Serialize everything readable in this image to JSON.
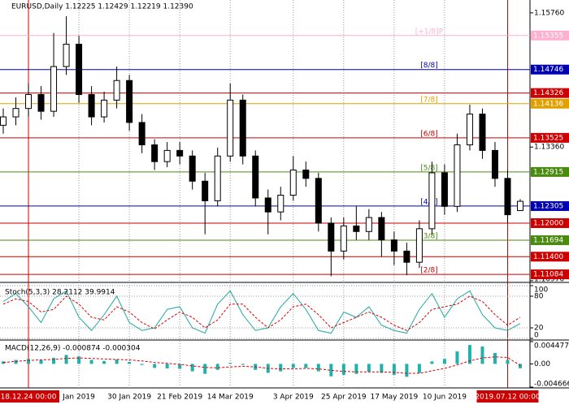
{
  "chart_data": [
    {
      "type": "candlestick",
      "title": "EURUSD,Daily 1.12225 1.12429 1.12219 1.12390",
      "ylim": [
        1.1094,
        1.1599
      ],
      "yticks": [
        {
          "value": 1.1576,
          "label": "1.15760"
        },
        {
          "value": 1.1336,
          "label": "1.13360"
        },
        {
          "value": 1.1097,
          "label": "1.10970"
        }
      ],
      "xticks": [
        {
          "value": 2,
          "label": "18.12.24 00:00",
          "color": "#cc0000"
        },
        {
          "value": 6,
          "label": "Jan 2019"
        },
        {
          "value": 10,
          "label": "30 Jan 2019"
        },
        {
          "value": 14,
          "label": "21 Feb 2019"
        },
        {
          "value": 18,
          "label": "14 Mar 2019"
        },
        {
          "value": 23,
          "label": "3 Apr 2019"
        },
        {
          "value": 27,
          "label": "25 Apr 2019"
        },
        {
          "value": 31,
          "label": "17 May 2019"
        },
        {
          "value": 35,
          "label": "10 Jun 2019"
        },
        {
          "value": 40,
          "label": "2019.07.12 00:00",
          "color": "#cc0000"
        }
      ],
      "open": [
        1.1375,
        1.139,
        1.1405,
        1.143,
        1.14,
        1.148,
        1.152,
        1.143,
        1.139,
        1.142,
        1.1455,
        1.138,
        1.134,
        1.131,
        1.133,
        1.132,
        1.1275,
        1.124,
        1.132,
        1.142,
        1.132,
        1.1245,
        1.122,
        1.125,
        1.1295,
        1.128,
        1.12,
        1.115,
        1.1195,
        1.1185,
        1.121,
        1.117,
        1.115,
        1.113,
        1.119,
        1.129,
        1.123,
        1.134,
        1.1395,
        1.133,
        1.128,
        1.12225
      ],
      "high": [
        1.1405,
        1.1425,
        1.145,
        1.1445,
        1.154,
        1.157,
        1.1535,
        1.1445,
        1.1435,
        1.148,
        1.1465,
        1.1395,
        1.135,
        1.1345,
        1.1345,
        1.133,
        1.129,
        1.1335,
        1.145,
        1.143,
        1.133,
        1.126,
        1.1265,
        1.132,
        1.131,
        1.129,
        1.121,
        1.121,
        1.123,
        1.1225,
        1.122,
        1.1185,
        1.1165,
        1.1205,
        1.131,
        1.1305,
        1.136,
        1.1412,
        1.1405,
        1.1345,
        1.1295,
        1.12429
      ],
      "low": [
        1.136,
        1.1375,
        1.139,
        1.1385,
        1.139,
        1.1465,
        1.1415,
        1.1375,
        1.138,
        1.1405,
        1.1365,
        1.1325,
        1.1295,
        1.13,
        1.1305,
        1.126,
        1.118,
        1.123,
        1.131,
        1.1305,
        1.123,
        1.118,
        1.1205,
        1.124,
        1.1265,
        1.1185,
        1.1105,
        1.1135,
        1.117,
        1.117,
        1.114,
        1.1125,
        1.1107,
        1.112,
        1.118,
        1.1215,
        1.122,
        1.133,
        1.1315,
        1.1265,
        1.12,
        1.12219
      ],
      "close": [
        1.139,
        1.1405,
        1.143,
        1.14,
        1.148,
        1.152,
        1.143,
        1.139,
        1.142,
        1.1455,
        1.138,
        1.134,
        1.131,
        1.133,
        1.132,
        1.1275,
        1.124,
        1.132,
        1.142,
        1.132,
        1.1245,
        1.122,
        1.125,
        1.1295,
        1.128,
        1.12,
        1.115,
        1.1195,
        1.1185,
        1.121,
        1.117,
        1.115,
        1.113,
        1.119,
        1.129,
        1.123,
        1.134,
        1.1395,
        1.133,
        1.128,
        1.1215,
        1.1239
      ],
      "levels": [
        {
          "value": 1.15355,
          "name": "[+1/8]P",
          "color": "#ffb0d0"
        },
        {
          "value": 1.14746,
          "name": "[8/8]",
          "color": "#0000b0"
        },
        {
          "value": 1.14326,
          "color": "#cc0000"
        },
        {
          "value": 1.14136,
          "name": "[7/8]",
          "color": "#e0a000"
        },
        {
          "value": 1.13525,
          "name": "[6/8]",
          "color": "#cc0000"
        },
        {
          "value": 1.12915,
          "name": "[5/8]",
          "color": "#4a8a10"
        },
        {
          "value": 1.12305,
          "name": "[4/8]",
          "color": "#0000b0"
        },
        {
          "value": 1.12,
          "label": "1.12000",
          "color": "#cc0000"
        },
        {
          "value": 1.11694,
          "name": "[3/8]",
          "color": "#4a8a10"
        },
        {
          "value": 1.114,
          "label": "1.11400",
          "color": "#cc0000"
        },
        {
          "value": 1.11084,
          "name": "[2/8]",
          "color": "#cc0000"
        }
      ]
    },
    {
      "type": "line",
      "title": "Stoch(5,3,3) 28.2112 39.9914",
      "ylim": [
        0,
        100
      ],
      "yticks": [
        0,
        20,
        80,
        100
      ],
      "series": [
        {
          "color": "#20a8a0",
          "values": [
            70,
            85,
            60,
            30,
            75,
            90,
            40,
            15,
            45,
            80,
            30,
            15,
            20,
            55,
            60,
            20,
            10,
            65,
            90,
            45,
            15,
            20,
            60,
            85,
            55,
            15,
            10,
            50,
            40,
            60,
            25,
            15,
            10,
            55,
            85,
            40,
            75,
            90,
            45,
            20,
            15,
            28.2112
          ]
        },
        {
          "color": "#dd0000",
          "dash": true,
          "values": [
            65,
            75,
            70,
            50,
            55,
            80,
            65,
            40,
            35,
            60,
            50,
            30,
            18,
            35,
            50,
            40,
            20,
            35,
            65,
            65,
            40,
            20,
            35,
            60,
            65,
            45,
            20,
            30,
            40,
            50,
            40,
            25,
            15,
            30,
            55,
            60,
            65,
            80,
            70,
            45,
            25,
            39.9914
          ]
        }
      ]
    },
    {
      "type": "macd",
      "title": "MACD(12,26,9) -0.000874 -0.000304",
      "ylim": [
        -0.004666,
        0.004477
      ],
      "yticks": [
        {
          "value": 0.004477,
          "label": "0.004477"
        },
        {
          "value": 0,
          "label": "0.00"
        },
        {
          "value": -0.004666,
          "label": "-0.004666"
        }
      ],
      "series": [
        {
          "color": "#20b2aa",
          "values": [
            0.0005,
            0.0008,
            0.001,
            0.0008,
            0.0012,
            0.0018,
            0.0015,
            0.0008,
            0.0006,
            0.0009,
            0.0004,
            -0.0002,
            -0.0008,
            -0.0009,
            -0.001,
            -0.0015,
            -0.002,
            -0.0012,
            0.0002,
            -0.0002,
            -0.0012,
            -0.0018,
            -0.0015,
            -0.0008,
            -0.0008,
            -0.0015,
            -0.0025,
            -0.0022,
            -0.002,
            -0.0016,
            -0.0018,
            -0.0022,
            -0.0026,
            -0.0018,
            0.0005,
            0.001,
            0.0025,
            0.0038,
            0.0035,
            0.0022,
            0.0008,
            -0.000874
          ]
        },
        {
          "color": "#dd0000",
          "dash": true,
          "values": [
            0.0003,
            0.0005,
            0.0007,
            0.0008,
            0.0009,
            0.0011,
            0.0012,
            0.0011,
            0.001,
            0.0009,
            0.0008,
            0.0006,
            0.0003,
            0.0001,
            -0.0001,
            -0.0004,
            -0.0007,
            -0.0008,
            -0.0006,
            -0.0005,
            -0.0006,
            -0.0009,
            -0.001,
            -0.001,
            -0.0009,
            -0.001,
            -0.0013,
            -0.0015,
            -0.0016,
            -0.0016,
            -0.0016,
            -0.0017,
            -0.0019,
            -0.0019,
            -0.0014,
            -0.0009,
            -0.0002,
            0.0006,
            0.0012,
            0.0014,
            0.0013,
            -0.000304
          ]
        }
      ]
    }
  ]
}
